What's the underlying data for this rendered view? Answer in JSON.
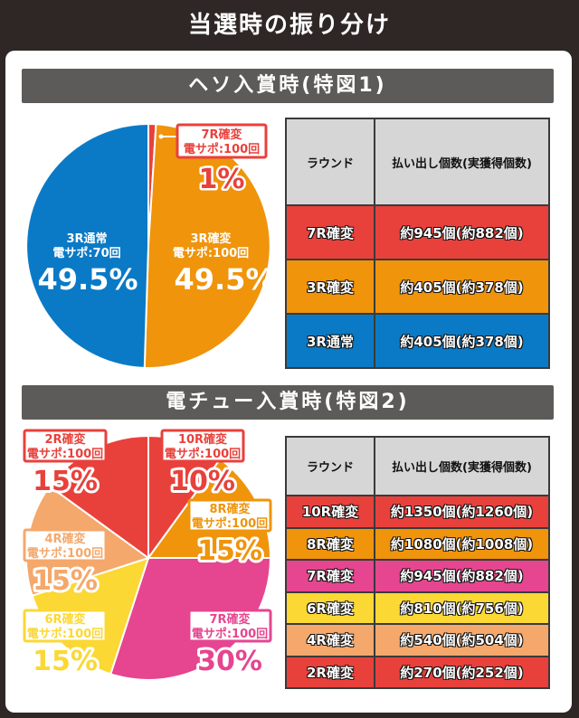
{
  "title": "当選時の振り分け",
  "colors": {
    "red": "#e8413c",
    "orange": "#ef940b",
    "blue": "#0a7ac6",
    "pink": "#e64590",
    "yellow": "#fbd833",
    "peach": "#f4a86b"
  },
  "sections": [
    {
      "header": "ヘソ入賞時(特図1)",
      "table": {
        "headers": [
          "ラウンド",
          "払い出し個数(実獲得個数)"
        ],
        "rows": [
          {
            "round": "7R確変",
            "payout": "約945個(約882個)",
            "color": "#e8413c"
          },
          {
            "round": "3R確変",
            "payout": "約405個(約378個)",
            "color": "#ef940b"
          },
          {
            "round": "3R通常",
            "payout": "約405個(約378個)",
            "color": "#0a7ac6"
          }
        ]
      }
    },
    {
      "header": "電チュー入賞時(特図2)",
      "table": {
        "headers": [
          "ラウンド",
          "払い出し個数(実獲得個数)"
        ],
        "rows": [
          {
            "round": "10R確変",
            "payout": "約1350個(約1260個)",
            "color": "#e8413c"
          },
          {
            "round": "8R確変",
            "payout": "約1080個(約1008個)",
            "color": "#ef940b"
          },
          {
            "round": "7R確変",
            "payout": "約945個(約882個)",
            "color": "#e64590"
          },
          {
            "round": "6R確変",
            "payout": "約810個(約756個)",
            "color": "#fbd833"
          },
          {
            "round": "4R確変",
            "payout": "約540個(約504個)",
            "color": "#f4a86b"
          },
          {
            "round": "2R確変",
            "payout": "約270個(約252個)",
            "color": "#e8413c"
          }
        ]
      }
    }
  ],
  "chart_data": [
    {
      "type": "pie",
      "title": "ヘソ入賞時(特図1)",
      "slices": [
        {
          "name": "7R確変",
          "support": "電サポ:100回",
          "value": 1,
          "label": "1%",
          "color": "#e8413c"
        },
        {
          "name": "3R確変",
          "support": "電サポ:100回",
          "value": 49.5,
          "label": "49.5%",
          "color": "#ef940b"
        },
        {
          "name": "3R通常",
          "support": "電サポ:70回",
          "value": 49.5,
          "label": "49.5%",
          "color": "#0a7ac6"
        }
      ]
    },
    {
      "type": "pie",
      "title": "電チュー入賞時(特図2)",
      "slices": [
        {
          "name": "10R確変",
          "support": "電サポ:100回",
          "value": 10,
          "label": "10%",
          "color": "#e8413c"
        },
        {
          "name": "8R確変",
          "support": "電サポ:100回",
          "value": 15,
          "label": "15%",
          "color": "#ef940b"
        },
        {
          "name": "7R確変",
          "support": "電サポ:100回",
          "value": 30,
          "label": "30%",
          "color": "#e64590"
        },
        {
          "name": "6R確変",
          "support": "電サポ:100回",
          "value": 15,
          "label": "15%",
          "color": "#fbd833"
        },
        {
          "name": "4R確変",
          "support": "電サポ:100回",
          "value": 15,
          "label": "15%",
          "color": "#f4a86b"
        },
        {
          "name": "2R確変",
          "support": "電サポ:100回",
          "value": 15,
          "label": "15%",
          "color": "#e8413c"
        }
      ]
    }
  ]
}
